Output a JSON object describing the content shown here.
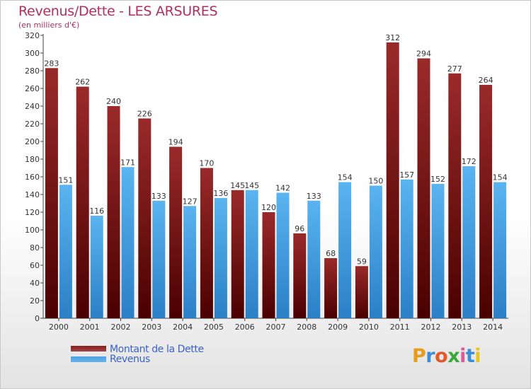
{
  "header": {
    "title": "Revenus/Dette - LES ARSURES",
    "subtitle": "(en milliers d'€)"
  },
  "legend": {
    "items": [
      {
        "label": "Montant de la Dette",
        "color": "#8b1c1c"
      },
      {
        "label": "Revenus",
        "color": "#4aa3e6"
      }
    ]
  },
  "logo": {
    "letters": [
      "P",
      "r",
      "o",
      "x",
      "i",
      "t",
      "i"
    ],
    "colors": [
      "#e89c1e",
      "#3c8dd8",
      "#e05a2a",
      "#3aa83a",
      "#e05a9a",
      "#3c8dd8",
      "#e8c21e"
    ]
  },
  "chart_data": {
    "type": "bar",
    "title": "Revenus/Dette - LES ARSURES",
    "subtitle": "(en milliers d'€)",
    "categories": [
      "2000",
      "2001",
      "2002",
      "2003",
      "2004",
      "2005",
      "2006",
      "2007",
      "2008",
      "2009",
      "2010",
      "2011",
      "2012",
      "2013",
      "2014"
    ],
    "series": [
      {
        "name": "Montant de la Dette",
        "color": "#8b1c1c",
        "values": [
          283,
          262,
          240,
          226,
          194,
          170,
          145,
          120,
          96,
          68,
          59,
          312,
          294,
          277,
          264
        ]
      },
      {
        "name": "Revenus",
        "color": "#4aa3e6",
        "values": [
          151,
          116,
          171,
          133,
          127,
          136,
          145,
          142,
          133,
          154,
          150,
          157,
          152,
          172,
          154
        ]
      }
    ],
    "ylim": [
      0,
      320
    ],
    "yticks": [
      0,
      20,
      40,
      60,
      80,
      100,
      120,
      140,
      160,
      180,
      200,
      220,
      240,
      260,
      280,
      300,
      320
    ],
    "grid": false,
    "legend_position": "bottom-left"
  }
}
